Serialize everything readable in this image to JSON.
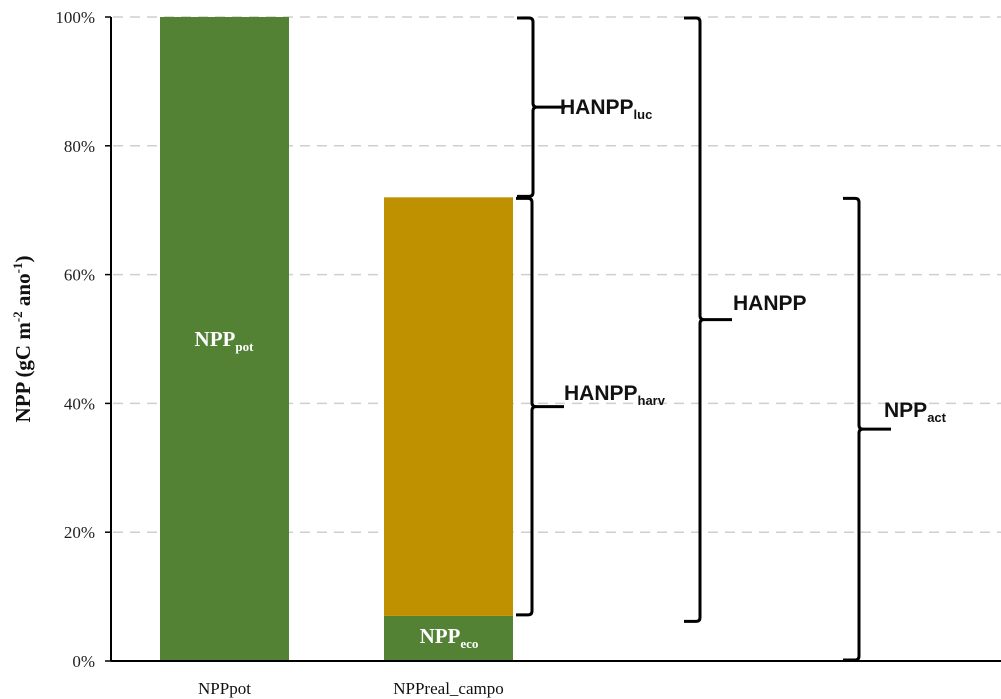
{
  "chart_data": {
    "type": "bar",
    "stacked": true,
    "categories": [
      "NPPpot",
      "NPPreal_campo"
    ],
    "series": [
      {
        "values": [
          100,
          7
        ],
        "color": "#548235"
      },
      {
        "values": [
          0,
          65
        ],
        "color": "#BF9000"
      }
    ],
    "ylim": [
      0,
      100
    ],
    "yticks": [
      "0%",
      "20%",
      "40%",
      "60%",
      "80%",
      "100%"
    ],
    "ylabel": {
      "main": "NPP (gC m",
      "sup1": "-2",
      "mid": " ano",
      "sup2": "-1",
      "end": ")"
    },
    "grid": true,
    "bar_labels": [
      {
        "main": "NPP",
        "sub": "pot"
      },
      {
        "main": "NPP",
        "sub": "eco"
      }
    ],
    "annotations": [
      {
        "main": "HANPP",
        "sub": "luc",
        "from": 72,
        "to": 100
      },
      {
        "main": "HANPP",
        "sub": "harv",
        "from": 7,
        "to": 72
      },
      {
        "main": "HANPP",
        "sub": "",
        "from": 6,
        "to": 100
      },
      {
        "main": "NPP",
        "sub": "act",
        "from": 0,
        "to": 72
      }
    ]
  }
}
